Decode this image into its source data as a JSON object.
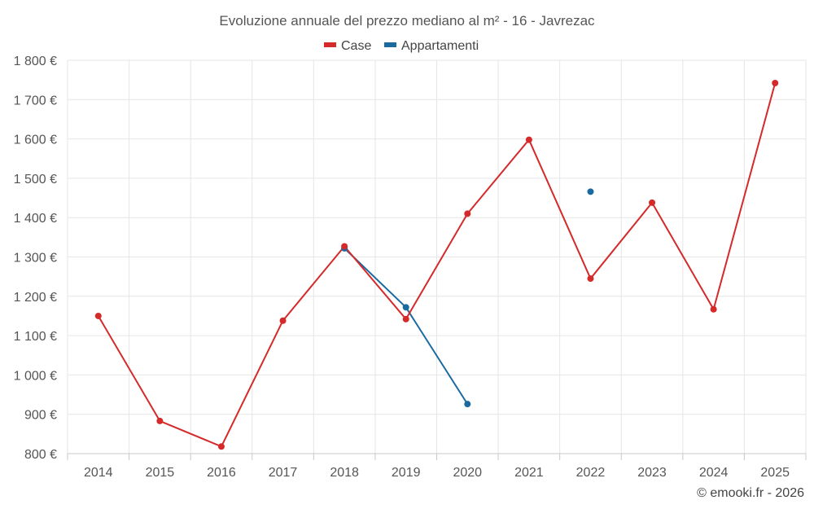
{
  "chart_data": {
    "type": "line",
    "title": "Evoluzione annuale del prezzo mediano al m² - 16 - Javrezac",
    "categories": [
      "2014",
      "2015",
      "2016",
      "2017",
      "2018",
      "2019",
      "2020",
      "2021",
      "2022",
      "2023",
      "2024",
      "2025"
    ],
    "y_ticks": [
      "800 €",
      "900 €",
      "1 000 €",
      "1 100 €",
      "1 200 €",
      "1 300 €",
      "1 400 €",
      "1 500 €",
      "1 600 €",
      "1 700 €",
      "1 800 €"
    ],
    "ylim": [
      800,
      1800
    ],
    "grid": true,
    "legend_position": "top-center",
    "series": [
      {
        "name": "Case",
        "color": "#d42a2a",
        "values": [
          1150,
          883,
          818,
          1138,
          1327,
          1142,
          1410,
          1598,
          1245,
          1438,
          1167,
          1742
        ]
      },
      {
        "name": "Appartamenti",
        "color": "#1a6aa0",
        "values": [
          null,
          null,
          null,
          null,
          1322,
          1172,
          926,
          null,
          1466,
          null,
          null,
          null
        ]
      }
    ],
    "credit": "© emooki.fr - 2026"
  }
}
